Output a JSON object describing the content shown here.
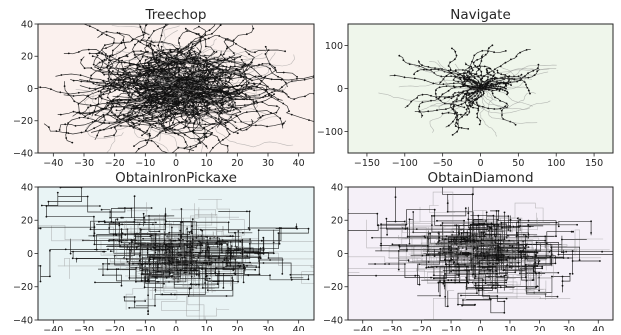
{
  "chart_data": [
    {
      "type": "line",
      "title": "Treechop",
      "xlabel": "",
      "ylabel": "",
      "xlim": [
        -45,
        45
      ],
      "ylim": [
        -40,
        40
      ],
      "xticks": [
        -40,
        -30,
        -20,
        -10,
        0,
        10,
        20,
        30,
        40
      ],
      "yticks": [
        -40,
        -20,
        0,
        20,
        40
      ],
      "background": "#fbf1ee",
      "pattern": "dense-central-cluster",
      "trajectory_count": 260,
      "spread": 14,
      "grid": false,
      "legend": "none",
      "series": []
    },
    {
      "type": "line",
      "title": "Navigate",
      "xlabel": "",
      "ylabel": "",
      "xlim": [
        -175,
        175
      ],
      "ylim": [
        -150,
        150
      ],
      "xticks": [
        -150,
        -100,
        -50,
        0,
        50,
        100,
        150
      ],
      "yticks": [
        -100,
        0,
        100
      ],
      "background": "#eff6eb",
      "pattern": "radial-starburst",
      "trajectory_count": 70,
      "spread": 90,
      "grid": false,
      "legend": "none",
      "series": []
    },
    {
      "type": "line",
      "title": "ObtainIronPickaxe",
      "xlabel": "",
      "ylabel": "",
      "xlim": [
        -45,
        45
      ],
      "ylim": [
        -40,
        40
      ],
      "xticks": [
        -40,
        -30,
        -20,
        -10,
        0,
        10,
        20,
        30,
        40
      ],
      "yticks": [
        -40,
        -20,
        0,
        20,
        40
      ],
      "background": "#e9f4f5",
      "pattern": "grid-aligned-wander",
      "trajectory_count": 150,
      "spread": 18,
      "grid": false,
      "legend": "none",
      "series": []
    },
    {
      "type": "line",
      "title": "ObtainDiamond",
      "xlabel": "",
      "ylabel": "",
      "xlim": [
        -45,
        45
      ],
      "ylim": [
        -40,
        40
      ],
      "xticks": [
        -40,
        -30,
        -20,
        -10,
        0,
        10,
        20,
        30,
        40
      ],
      "yticks": [
        -40,
        -20,
        0,
        20,
        40
      ],
      "background": "#f5f0f8",
      "pattern": "grid-aligned-wander",
      "trajectory_count": 150,
      "spread": 18,
      "grid": false,
      "legend": "none",
      "series": []
    }
  ],
  "colors": {
    "trajectory_dark": "#111111",
    "trajectory_light": "#888888",
    "axis": "#262626",
    "text": "#262626"
  }
}
